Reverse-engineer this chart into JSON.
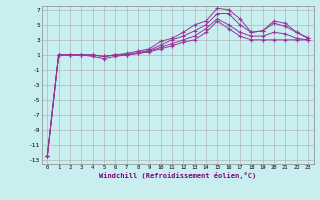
{
  "xlabel": "Windchill (Refroidissement éolien,°C)",
  "bg_color": "#c8eef0",
  "grid_color": "#aaaaaa",
  "line_color": "#993399",
  "xmin": 0,
  "xmax": 23,
  "ymin": -13,
  "ymax": 7,
  "yticks": [
    -13,
    -11,
    -9,
    -7,
    -5,
    -3,
    -1,
    1,
    3,
    5,
    7
  ],
  "x": [
    0,
    1,
    2,
    3,
    4,
    5,
    6,
    7,
    8,
    9,
    10,
    11,
    12,
    13,
    14,
    15,
    16,
    17,
    18,
    19,
    20,
    21,
    22,
    23
  ],
  "curves": [
    [
      -12.5,
      1.0,
      1.0,
      1.0,
      1.0,
      0.8,
      1.0,
      1.0,
      1.2,
      1.4,
      1.8,
      2.2,
      2.7,
      3.0,
      4.0,
      5.5,
      4.5,
      3.5,
      3.0,
      3.0,
      3.0,
      3.0,
      3.0,
      3.0
    ],
    [
      -12.5,
      1.0,
      1.0,
      1.0,
      1.0,
      0.8,
      1.0,
      1.0,
      1.2,
      1.5,
      2.0,
      2.5,
      3.0,
      3.5,
      4.5,
      5.8,
      5.0,
      4.0,
      3.5,
      3.5,
      4.0,
      3.8,
      3.2,
      3.0
    ],
    [
      -12.5,
      1.0,
      1.0,
      1.0,
      0.8,
      0.5,
      0.8,
      1.0,
      1.3,
      1.6,
      2.3,
      3.0,
      3.5,
      4.2,
      5.0,
      6.5,
      6.5,
      5.0,
      4.0,
      4.2,
      5.2,
      4.8,
      4.0,
      3.2
    ],
    [
      -12.5,
      1.0,
      1.0,
      1.0,
      1.0,
      0.8,
      1.0,
      1.2,
      1.5,
      1.8,
      2.8,
      3.2,
      4.0,
      5.0,
      5.5,
      7.2,
      7.0,
      5.8,
      4.0,
      4.2,
      5.5,
      5.2,
      4.0,
      3.3
    ]
  ]
}
